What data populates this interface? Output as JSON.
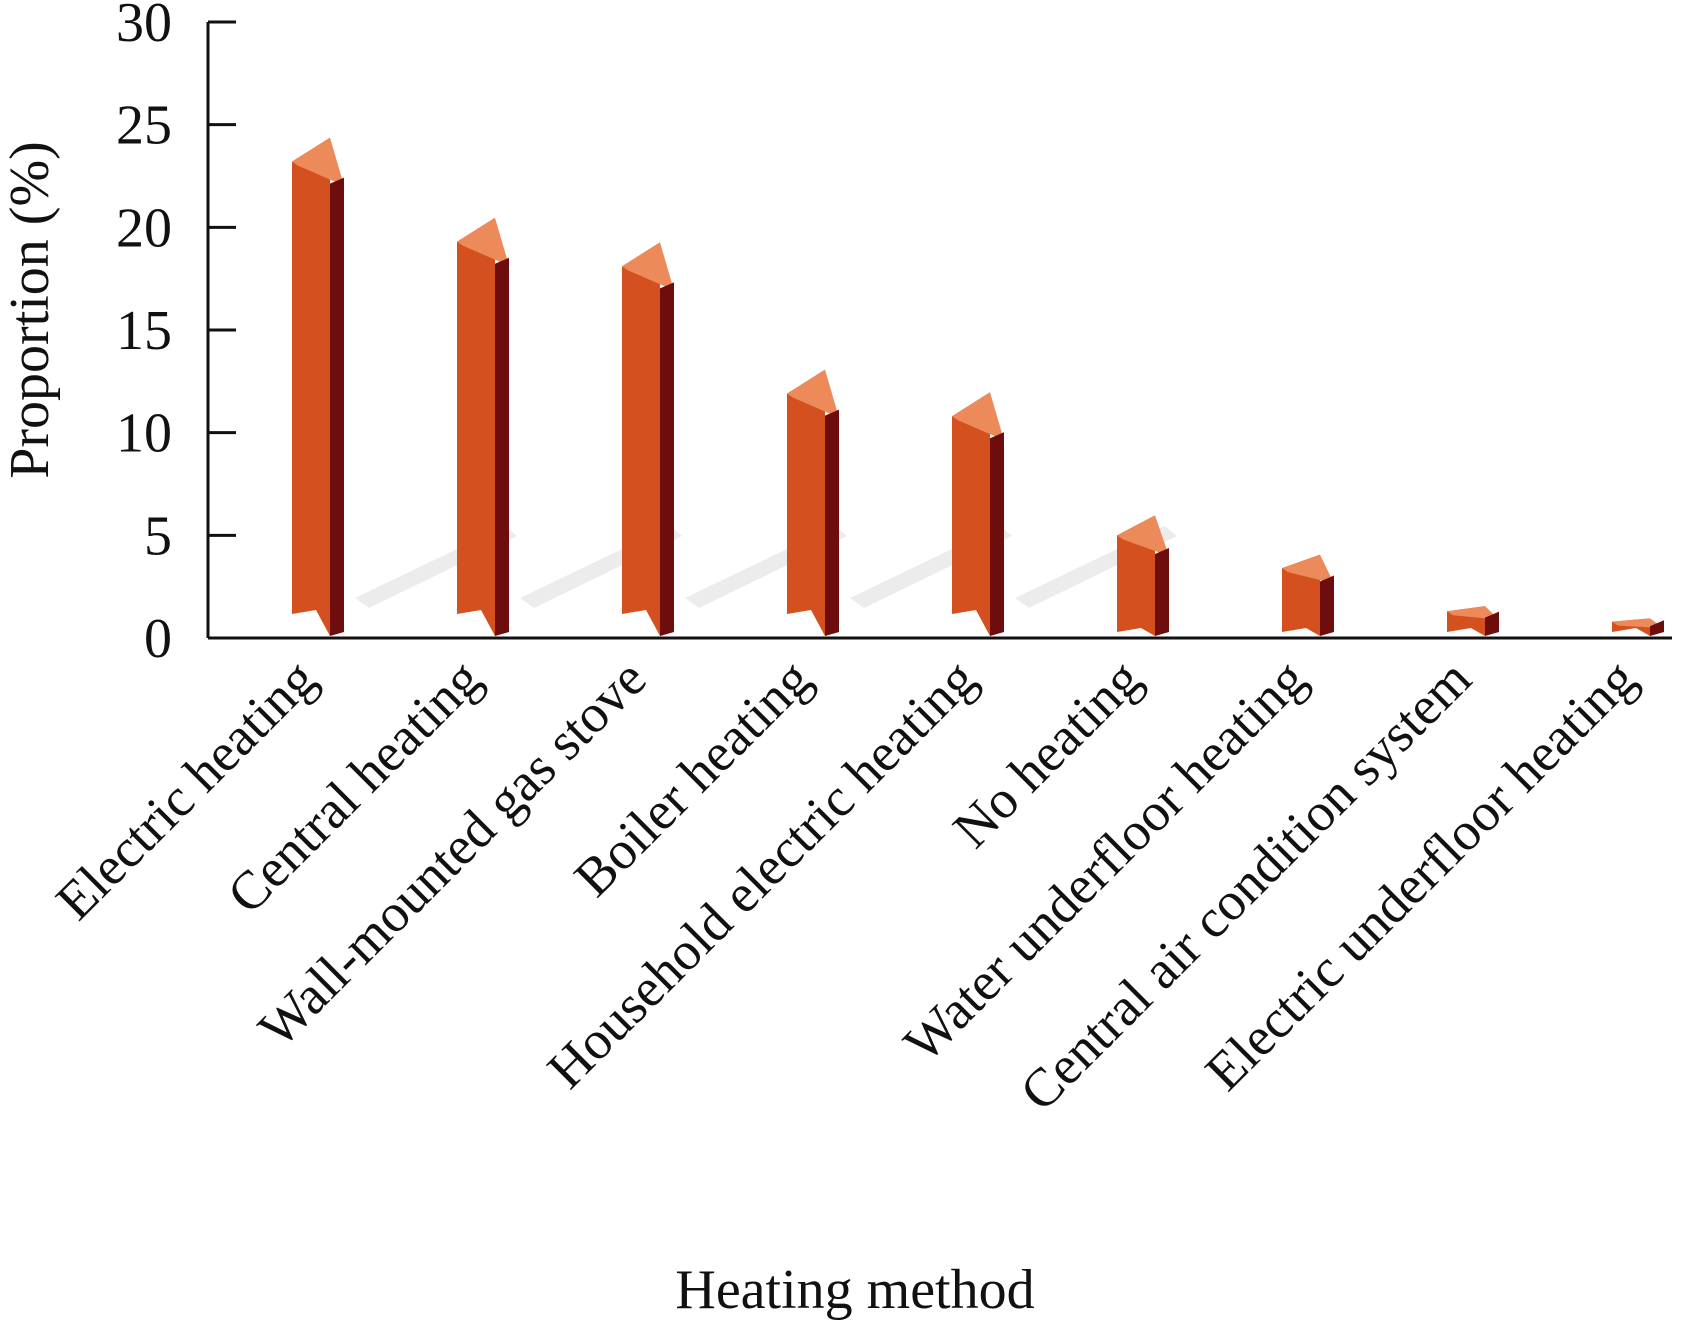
{
  "colors": {
    "bar_front": "#d4511f",
    "bar_top": "#ec8a5a",
    "bar_side": "#6e0d0d",
    "shadow": "#dcdcdc",
    "axis": "#111111"
  },
  "chart_data": {
    "type": "bar",
    "title": "",
    "xlabel": "Heating method",
    "ylabel": "Proportion (%)",
    "ylim": [
      0,
      30
    ],
    "yticks": [
      "0",
      "5",
      "10",
      "15",
      "20",
      "25",
      "30"
    ],
    "categories": [
      "Electric heating",
      "Central heating",
      "Wall-mounted gas stove",
      "Boiler heating",
      "Household electric heating",
      "No heating",
      "Water underfloor heating",
      "Central air condition system",
      "Electric underfloor heating"
    ],
    "values": [
      23.2,
      19.3,
      18.1,
      11.9,
      10.8,
      5.0,
      3.4,
      1.3,
      0.8
    ],
    "grid": false,
    "legend": "none",
    "style": "3d-bars"
  }
}
